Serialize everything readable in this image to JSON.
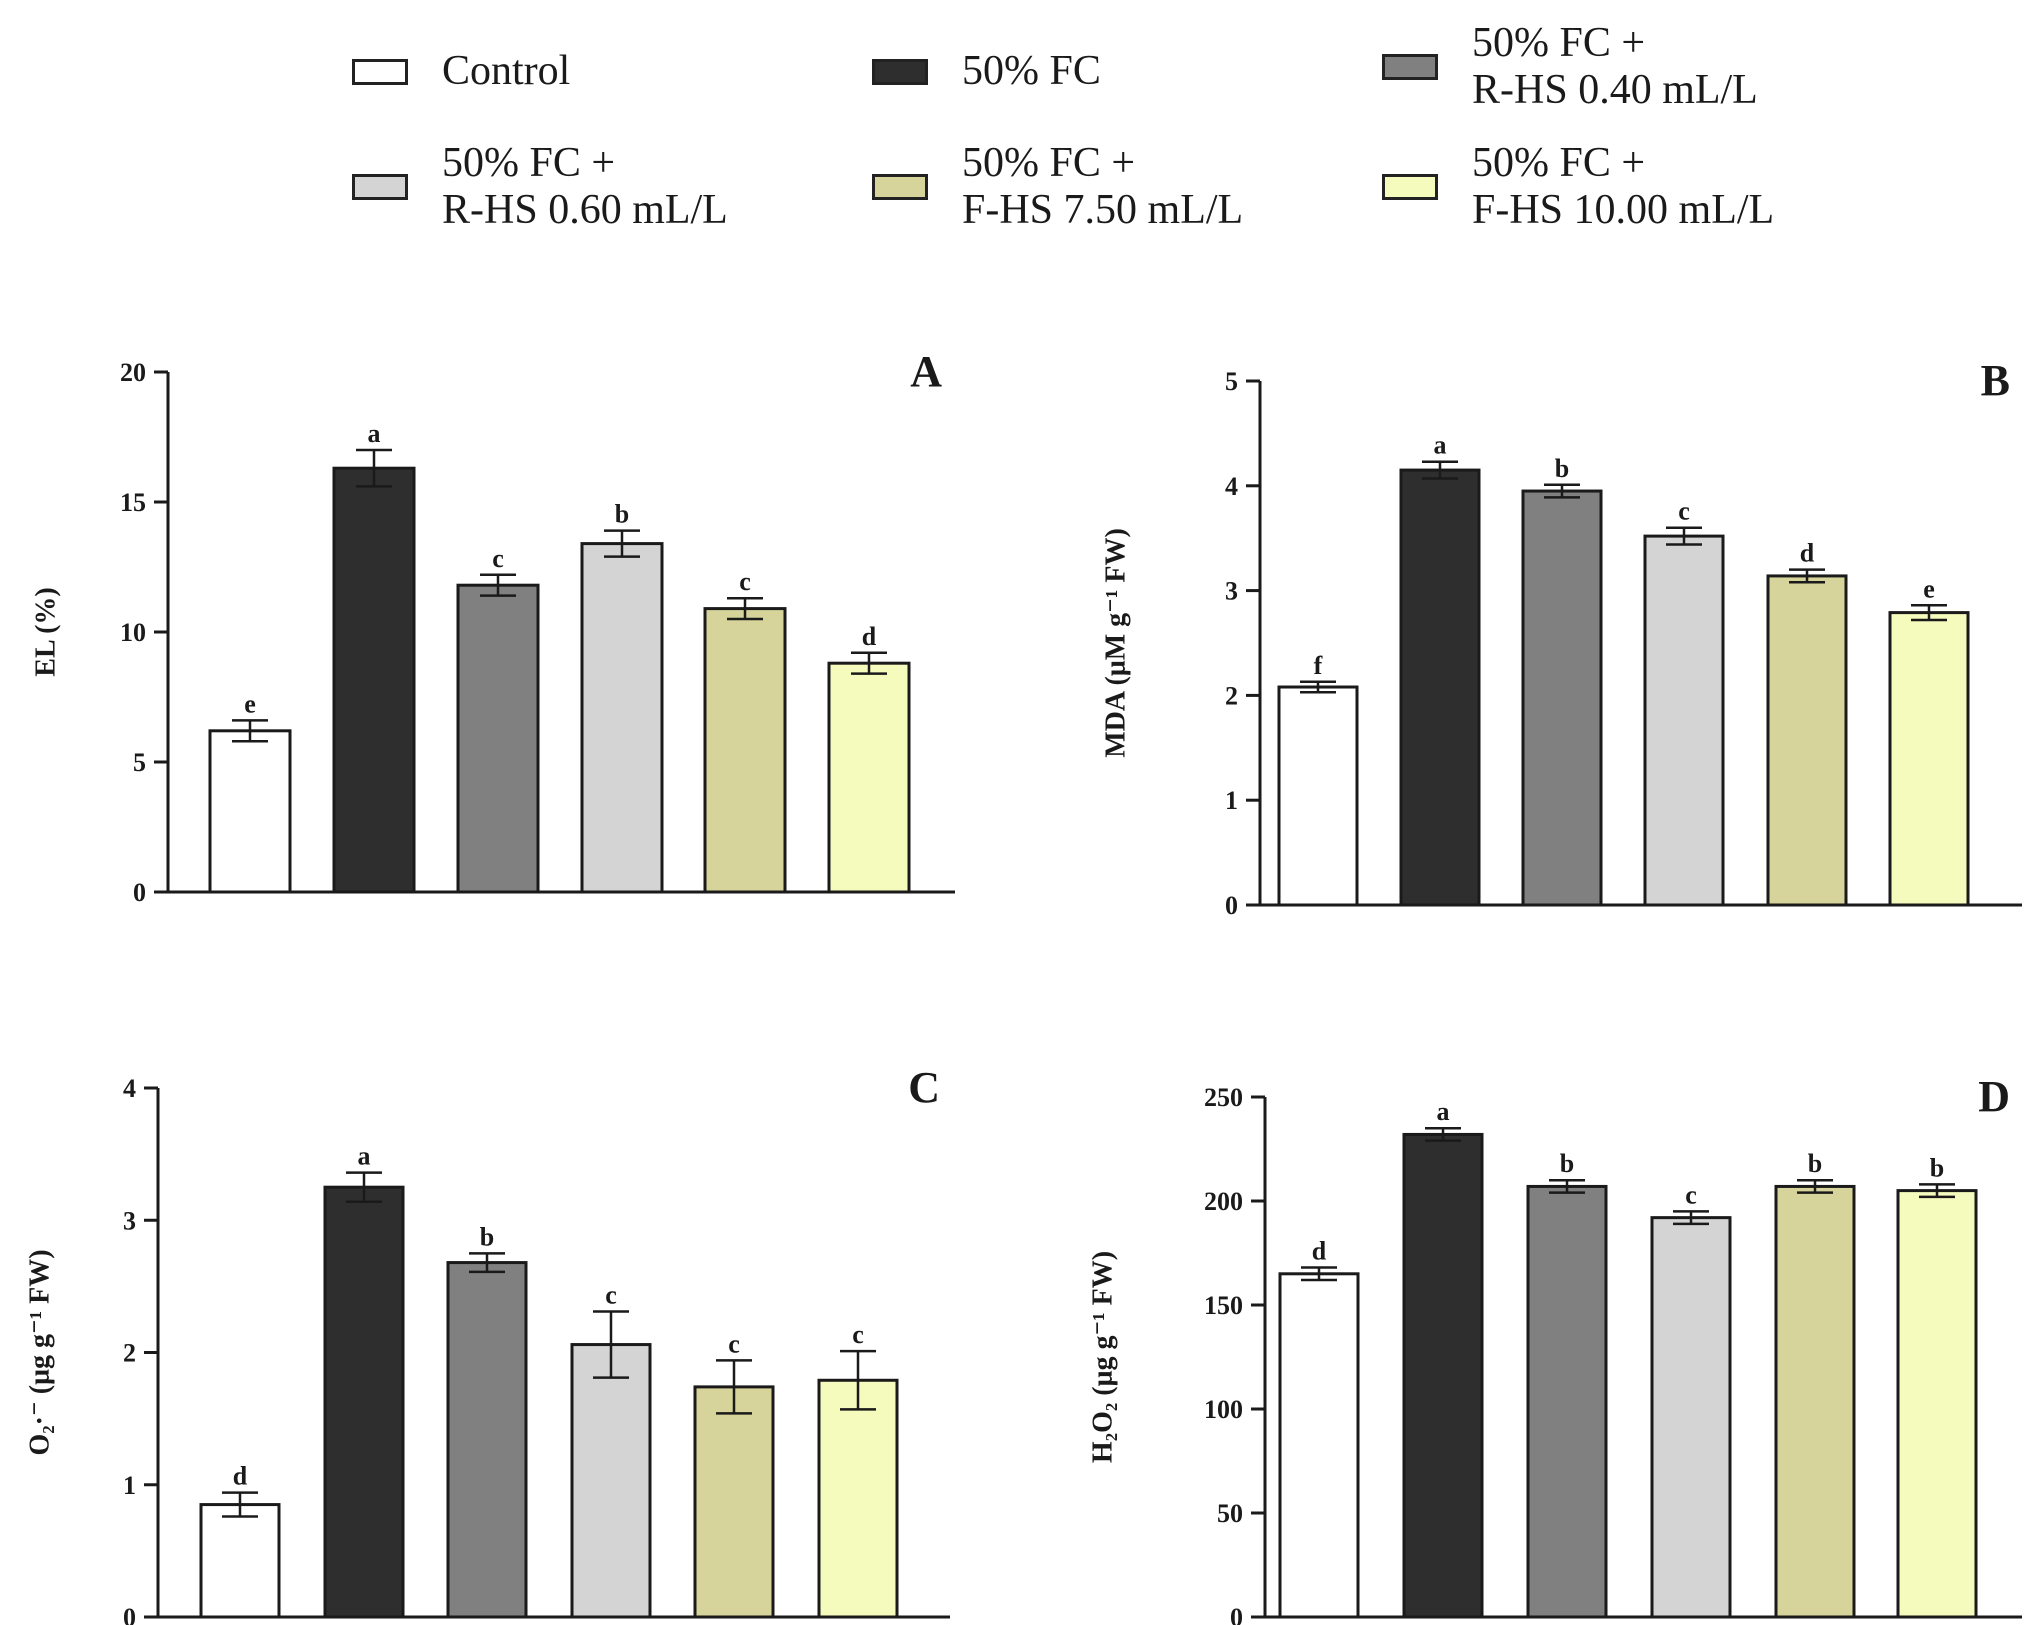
{
  "legend": {
    "items": [
      {
        "label": "Control",
        "color": "#ffffff"
      },
      {
        "label": "50% FC",
        "color": "#2e2e2e"
      },
      {
        "label": "50% FC +\nR-HS 0.40 mL/L",
        "color": "#808080"
      },
      {
        "label": "50% FC +\nR-HS 0.60 mL/L",
        "color": "#d4d4d4"
      },
      {
        "label": "50% FC +\nF-HS 7.50 mL/L",
        "color": "#d6d49a"
      },
      {
        "label": "50% FC +\nF-HS 10.00 mL/L",
        "color": "#f5fbbd"
      }
    ]
  },
  "chart_data": [
    {
      "type": "bar",
      "panel": "A",
      "ylabel": "EL (%)",
      "ylim": [
        0,
        20
      ],
      "yticks": [
        "0",
        "5",
        "10",
        "15",
        "20"
      ],
      "categories": [
        "Control",
        "50% FC",
        "50% FC + R-HS 0.40 mL/L",
        "50% FC + R-HS 0.60 mL/L",
        "50% FC + F-HS 7.50 mL/L",
        "50% FC + F-HS 10.00 mL/L"
      ],
      "values": [
        6.2,
        16.3,
        11.8,
        13.4,
        10.9,
        8.8
      ],
      "errors": [
        0.4,
        0.7,
        0.4,
        0.5,
        0.4,
        0.4
      ],
      "letters": [
        "e",
        "a",
        "c",
        "b",
        "c",
        "d"
      ]
    },
    {
      "type": "bar",
      "panel": "B",
      "ylabel": "MDA (μM g⁻¹ FW)",
      "ylim": [
        0,
        5
      ],
      "yticks": [
        "0",
        "1",
        "2",
        "3",
        "4",
        "5"
      ],
      "categories": [
        "Control",
        "50% FC",
        "50% FC + R-HS 0.40 mL/L",
        "50% FC + R-HS 0.60 mL/L",
        "50% FC + F-HS 7.50 mL/L",
        "50% FC + F-HS 10.00 mL/L"
      ],
      "values": [
        2.08,
        4.15,
        3.95,
        3.52,
        3.14,
        2.79
      ],
      "errors": [
        0.05,
        0.08,
        0.06,
        0.08,
        0.06,
        0.07
      ],
      "letters": [
        "f",
        "a",
        "b",
        "c",
        "d",
        "e"
      ]
    },
    {
      "type": "bar",
      "panel": "C",
      "ylabel": "O₂·⁻ (μg g⁻¹ FW)",
      "ylim": [
        0,
        4
      ],
      "yticks": [
        "0",
        "1",
        "2",
        "3",
        "4"
      ],
      "categories": [
        "Control",
        "50% FC",
        "50% FC + R-HS 0.40 mL/L",
        "50% FC + R-HS 0.60 mL/L",
        "50% FC + F-HS 7.50 mL/L",
        "50% FC + F-HS 10.00 mL/L"
      ],
      "values": [
        0.85,
        3.25,
        2.68,
        2.06,
        1.74,
        1.79
      ],
      "errors": [
        0.09,
        0.11,
        0.07,
        0.25,
        0.2,
        0.22
      ],
      "letters": [
        "d",
        "a",
        "b",
        "c",
        "c",
        "c"
      ]
    },
    {
      "type": "bar",
      "panel": "D",
      "ylabel": "H₂O₂ (μg g⁻¹ FW)",
      "ylim": [
        0,
        250
      ],
      "yticks": [
        "0",
        "50",
        "100",
        "150",
        "200",
        "250"
      ],
      "categories": [
        "Control",
        "50% FC",
        "50% FC + R-HS 0.40 mL/L",
        "50% FC + R-HS 0.60 mL/L",
        "50% FC + F-HS 7.50 mL/L",
        "50% FC + F-HS 10.00 mL/L"
      ],
      "values": [
        165,
        232,
        207,
        192,
        207,
        205
      ],
      "errors": [
        3,
        3,
        3,
        3,
        3,
        3
      ],
      "letters": [
        "d",
        "a",
        "b",
        "c",
        "b",
        "b"
      ]
    }
  ]
}
